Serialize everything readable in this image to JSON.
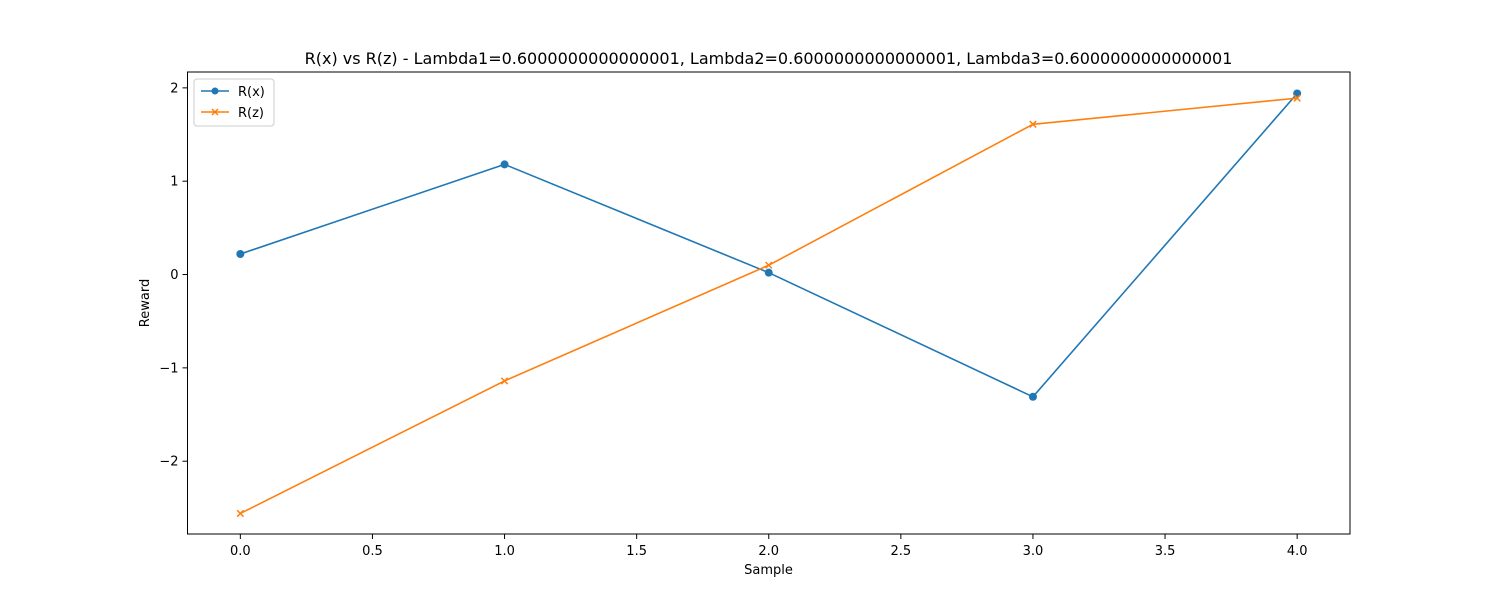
{
  "chart_data": {
    "type": "line",
    "title": "R(x) vs R(z) - Lambda1=0.6000000000000001, Lambda2=0.6000000000000001, Lambda3=0.6000000000000001",
    "xlabel": "Sample",
    "ylabel": "Reward",
    "x": [
      0,
      1,
      2,
      3,
      4
    ],
    "xlim": [
      -0.2,
      4.2
    ],
    "ylim": [
      -2.78,
      2.17
    ],
    "xticks": [
      0.0,
      0.5,
      1.0,
      1.5,
      2.0,
      2.5,
      3.0,
      3.5,
      4.0
    ],
    "xtick_labels": [
      "0.0",
      "0.5",
      "1.0",
      "1.5",
      "2.0",
      "2.5",
      "3.0",
      "3.5",
      "4.0"
    ],
    "yticks": [
      -2,
      -1,
      0,
      1,
      2
    ],
    "ytick_labels": [
      "−2",
      "−1",
      "0",
      "1",
      "2"
    ],
    "grid": false,
    "legend_position": "top-left",
    "series": [
      {
        "name": "R(x)",
        "values": [
          0.22,
          1.18,
          0.02,
          -1.31,
          1.94
        ],
        "color": "#1f77b4",
        "marker": "circle"
      },
      {
        "name": "R(z)",
        "values": [
          -2.56,
          -1.14,
          0.1,
          1.61,
          1.89
        ],
        "color": "#ff7f0e",
        "marker": "x"
      }
    ]
  }
}
